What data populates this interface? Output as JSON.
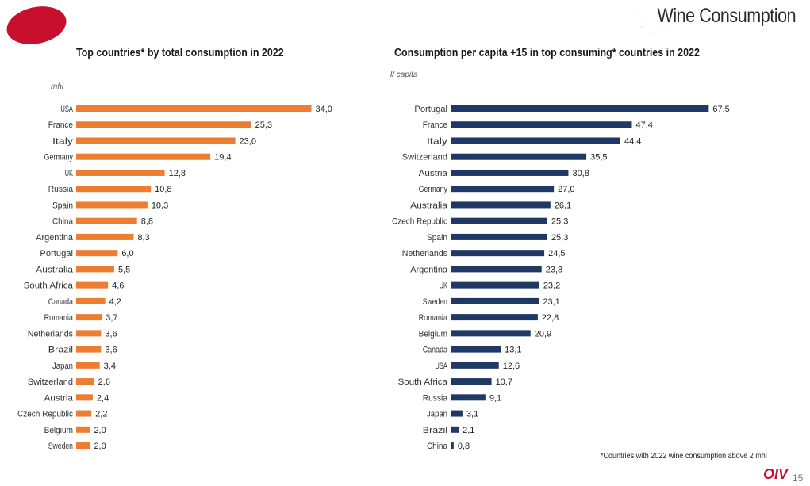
{
  "header": {
    "title": "Wine Consumption"
  },
  "footer": {
    "footnote": "*Countries with 2022 wine consumption above 2 mhl",
    "logo_text": "OIV",
    "page_number": "15"
  },
  "colors": {
    "orange_bar": "#ed7d31",
    "navy_bar": "#1f3864",
    "logo_red": "#c8102e"
  },
  "chart_data": [
    {
      "type": "bar",
      "orientation": "horizontal",
      "title": "Top countries* by total consumption in 2022",
      "unit": "mhl",
      "categories": [
        "USA",
        "France",
        "Italy",
        "Germany",
        "UK",
        "Russia",
        "Spain",
        "China",
        "Argentina",
        "Portugal",
        "Australia",
        "South Africa",
        "Canada",
        "Romania",
        "Netherlands",
        "Brazil",
        "Japan",
        "Switzerland",
        "Austria",
        "Czech Republic",
        "Belgium",
        "Sweden"
      ],
      "values": [
        34.0,
        25.3,
        23.0,
        19.4,
        12.8,
        10.8,
        10.3,
        8.8,
        8.3,
        6.0,
        5.5,
        4.6,
        4.2,
        3.7,
        3.6,
        3.6,
        3.4,
        2.6,
        2.4,
        2.2,
        2.0,
        2.0
      ],
      "labels": [
        "34,0",
        "25,3",
        "23,0",
        "19,4",
        "12,8",
        "10,8",
        "10,3",
        "8,8",
        "8,3",
        "6,0",
        "5,5",
        "4,6",
        "4,2",
        "3,7",
        "3,6",
        "3,6",
        "3,4",
        "2,6",
        "2,4",
        "2,2",
        "2,0",
        "2,0"
      ],
      "color": "#ed7d31",
      "grid": false
    },
    {
      "type": "bar",
      "orientation": "horizontal",
      "title": "Consumption per capita +15 in top consuming* countries in 2022",
      "unit": "l/ capita",
      "categories": [
        "Portugal",
        "France",
        "Italy",
        "Switzerland",
        "Austria",
        "Germany",
        "Australia",
        "Czech Republic",
        "Spain",
        "Netherlands",
        "Argentina",
        "UK",
        "Sweden",
        "Romania",
        "Belgium",
        "Canada",
        "USA",
        "South Africa",
        "Russia",
        "Japan",
        "Brazil",
        "China"
      ],
      "values": [
        67.5,
        47.4,
        44.4,
        35.5,
        30.8,
        27.0,
        26.1,
        25.3,
        25.3,
        24.5,
        23.8,
        23.2,
        23.1,
        22.8,
        20.9,
        13.1,
        12.6,
        10.7,
        9.1,
        3.1,
        2.1,
        0.8
      ],
      "labels": [
        "67,5",
        "47,4",
        "44,4",
        "35,5",
        "30,8",
        "27,0",
        "26,1",
        "25,3",
        "25,3",
        "24,5",
        "23,8",
        "23,2",
        "23,1",
        "22,8",
        "20,9",
        "13,1",
        "12,6",
        "10,7",
        "9,1",
        "3,1",
        "2,1",
        "0,8"
      ],
      "color": "#1f3864",
      "grid": false
    }
  ]
}
